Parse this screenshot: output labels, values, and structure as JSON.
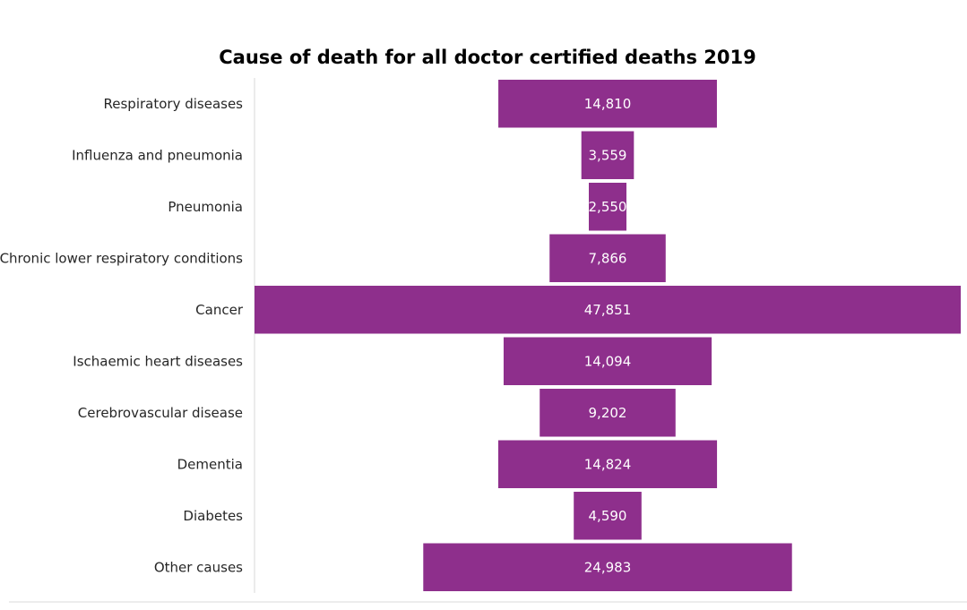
{
  "chart_data": {
    "type": "bar",
    "orientation": "horizontal-centered",
    "title": "Cause of death for all doctor certified deaths 2019",
    "xlabel": "",
    "ylabel": "",
    "categories": [
      "Respiratory diseases",
      "Influenza and pneumonia",
      "Pneumonia",
      "Chronic lower respiratory conditions",
      "Cancer",
      "Ischaemic heart diseases",
      "Cerebrovascular disease",
      "Dementia",
      "Diabetes",
      "Other causes"
    ],
    "values": [
      14810,
      3559,
      2550,
      7866,
      47851,
      14094,
      9202,
      14824,
      4590,
      24983
    ],
    "value_labels": [
      "14,810",
      "3,559",
      "2,550",
      "7,866",
      "47,851",
      "14,094",
      "9,202",
      "14,824",
      "4,590",
      "24,983"
    ],
    "xlim": [
      0,
      47851
    ],
    "grid": false,
    "legend": "none",
    "bar_color": "#8e2f8c",
    "label_color": "#ffffff",
    "axis_color": "#d9d9d9"
  }
}
